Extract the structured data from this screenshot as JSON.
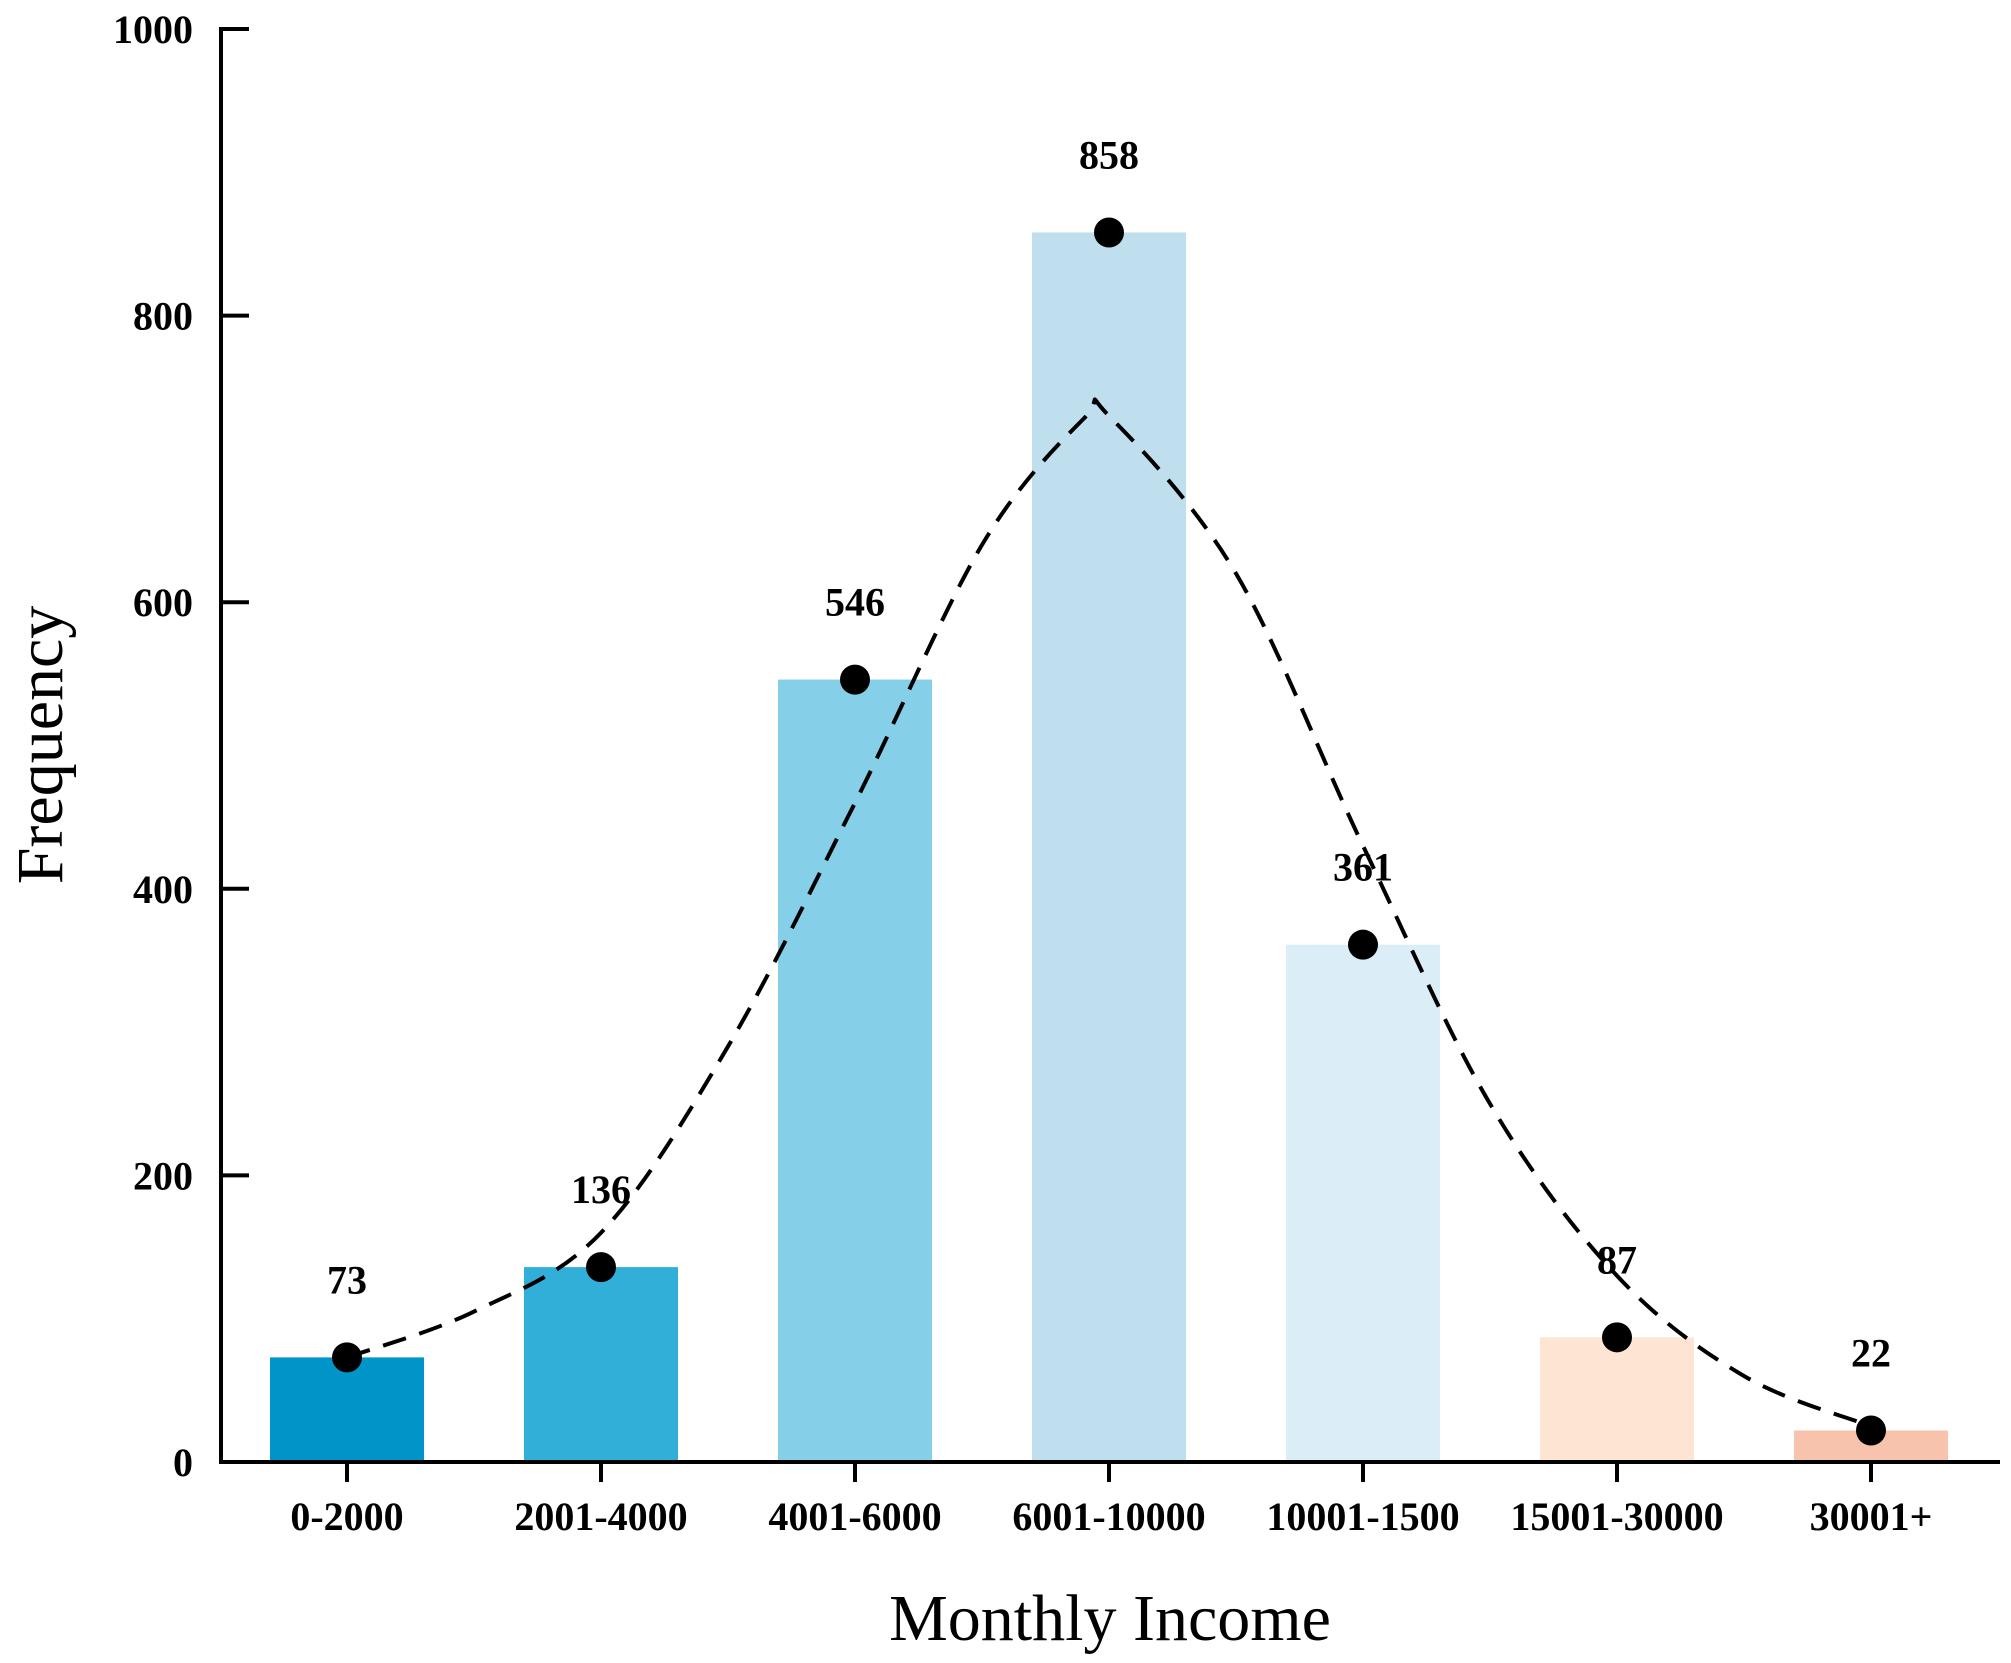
{
  "chart_data": {
    "type": "bar",
    "title": "",
    "xlabel": "Monthly Income",
    "ylabel": "Frequency",
    "ylim": [
      0,
      1000
    ],
    "yticks": [
      0,
      200,
      400,
      600,
      800,
      1000
    ],
    "grid": false,
    "categories": [
      "0-2000",
      "2001-4000",
      "4001-6000",
      "6001-10000",
      "10001-1500",
      "15001-30000",
      "30001+"
    ],
    "values": [
      73,
      136,
      546,
      858,
      361,
      87,
      22
    ],
    "bar_colors": [
      "#0094c8",
      "#32afd9",
      "#86cfe8",
      "#bfdfef",
      "#dbeef7",
      "#fde4d3",
      "#f7c3ad"
    ],
    "markers": "black dots at bar tops",
    "fitted_curve": {
      "style": "dashed",
      "color": "#000000",
      "points": [
        [
          0,
          73
        ],
        [
          0.5,
          105
        ],
        [
          1,
          160
        ],
        [
          1.5,
          290
        ],
        [
          2,
          460
        ],
        [
          2.5,
          640
        ],
        [
          2.9,
          728
        ],
        [
          3,
          730
        ],
        [
          3.5,
          620
        ],
        [
          4,
          430
        ],
        [
          4.5,
          250
        ],
        [
          5,
          130
        ],
        [
          5.5,
          60
        ],
        [
          6,
          25
        ]
      ]
    }
  }
}
